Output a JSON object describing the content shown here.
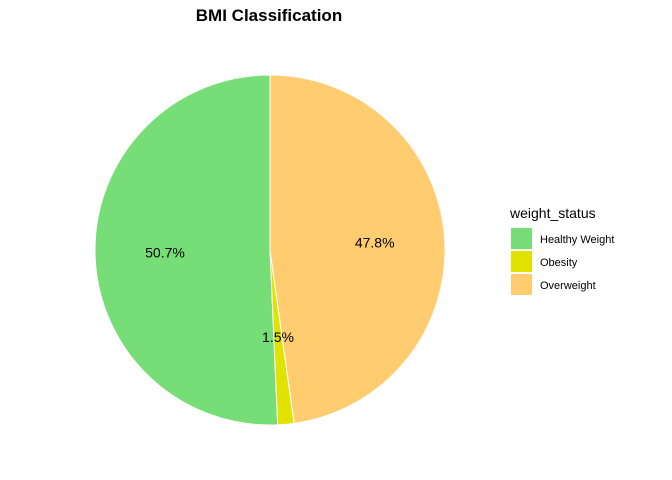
{
  "chart_data": {
    "type": "pie",
    "title": "BMI Classification",
    "legend_title": "weight_status",
    "legend_position": "right",
    "slices": [
      {
        "label": "Healthy Weight",
        "value": 50.7,
        "display": "50.7%",
        "color": "#77dd77"
      },
      {
        "label": "Obesity",
        "value": 1.5,
        "display": "1.5%",
        "color": "#e2e200"
      },
      {
        "label": "Overweight",
        "value": 47.8,
        "display": "47.8%",
        "color": "#ffcc70"
      }
    ]
  }
}
